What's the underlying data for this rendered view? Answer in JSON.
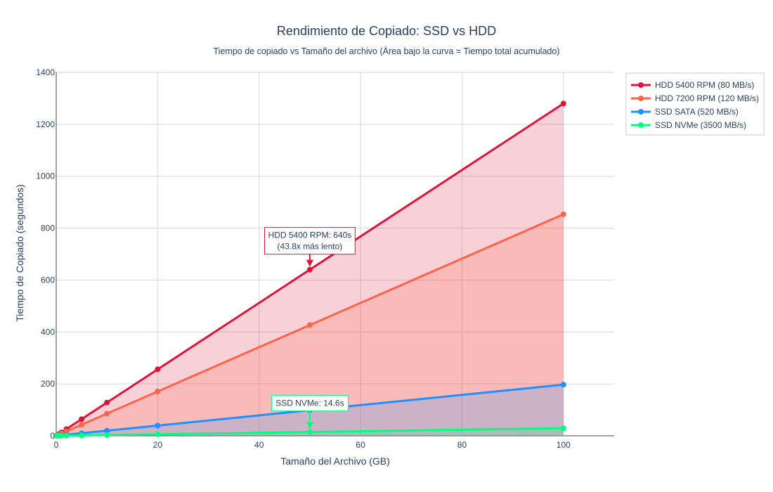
{
  "chart_data": {
    "type": "area",
    "title": "Rendimiento de Copiado: SSD vs HDD",
    "subtitle": "Tiempo de copiado vs Tamaño del archivo (Área bajo la curva = Tiempo total acumulado)",
    "xlabel": "Tamaño del Archivo (GB)",
    "ylabel": "Tiempo de Copiado (segundos)",
    "xlim": [
      0,
      110
    ],
    "ylim": [
      0,
      1400
    ],
    "xticks": [
      0,
      20,
      40,
      60,
      80,
      100
    ],
    "yticks": [
      0,
      200,
      400,
      600,
      800,
      1000,
      1200,
      1400
    ],
    "grid": true,
    "legend_position": "top-right",
    "x": [
      0.1,
      0.5,
      1,
      2,
      5,
      10,
      20,
      50,
      100
    ],
    "series": [
      {
        "name": "HDD 5400 RPM (80 MB/s)",
        "color": "#dc143c",
        "fill": "rgba(220,20,60,0.2)",
        "values": [
          1.28,
          6.4,
          12.8,
          25.6,
          64,
          128,
          256,
          640,
          1280
        ]
      },
      {
        "name": "HDD 7200 RPM (120 MB/s)",
        "color": "#ff6347",
        "fill": "rgba(255,99,71,0.2)",
        "values": [
          0.85,
          4.27,
          8.53,
          17.07,
          42.67,
          85.33,
          170.67,
          426.67,
          853.33
        ]
      },
      {
        "name": "SSD SATA (520 MB/s)",
        "color": "#1e90ff",
        "fill": "rgba(30,144,255,0.2)",
        "values": [
          0.2,
          0.98,
          1.97,
          3.94,
          9.85,
          19.69,
          39.38,
          98.46,
          196.92
        ]
      },
      {
        "name": "SSD NVMe (3500 MB/s)",
        "color": "#00ff7f",
        "fill": "rgba(0,255,127,0.2)",
        "values": [
          0.03,
          0.15,
          0.29,
          0.59,
          1.46,
          2.93,
          5.85,
          14.63,
          29.26
        ]
      }
    ],
    "annotations": [
      {
        "lines": [
          "HDD 5400 RPM: 640s",
          "(43.8x más lento)"
        ],
        "x": 50,
        "y": 640,
        "color": "#dc143c"
      },
      {
        "lines": [
          "SSD NVMe: 14.6s"
        ],
        "x": 50,
        "y": 14.6,
        "color": "#00ff7f"
      }
    ]
  }
}
